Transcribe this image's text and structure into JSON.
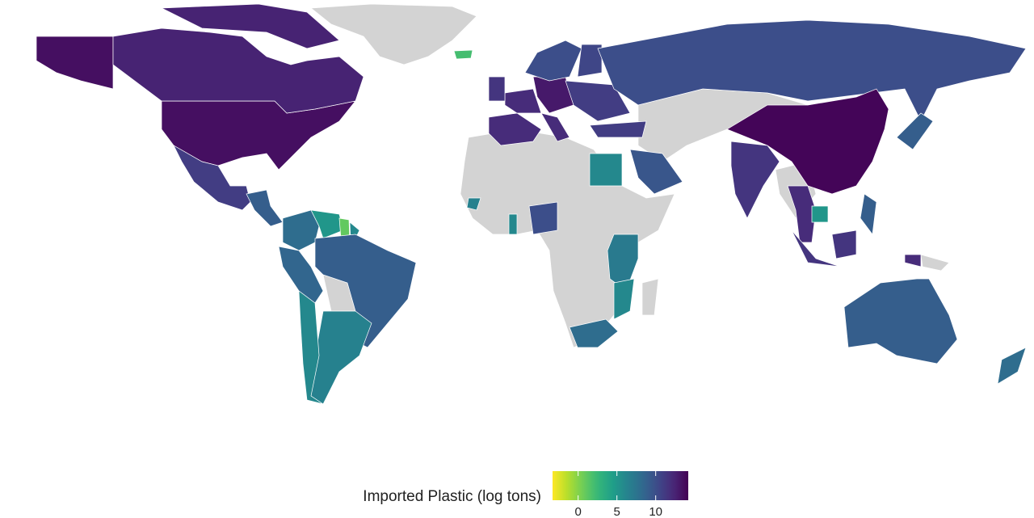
{
  "chart_data": {
    "type": "choropleth",
    "legend_title": "Imported Plastic (log tons)",
    "colormap": "viridis",
    "reverse": true,
    "colorlim": [
      -3.3,
      14.2
    ],
    "colorticks": [
      0,
      5,
      10
    ],
    "values": [
      13.5,
      13.5,
      12.5,
      12.5,
      11,
      9,
      8,
      5,
      1,
      6,
      8.5,
      9,
      6.5,
      6,
      12,
      12,
      11.5,
      13,
      12,
      11,
      11,
      10,
      10.5,
      10,
      14,
      11.5,
      9,
      9.5,
      6,
      10,
      6,
      6.5,
      7,
      6,
      8,
      12,
      5,
      11.5,
      11.5,
      9,
      9,
      8,
      2,
      12
    ]
  }
}
